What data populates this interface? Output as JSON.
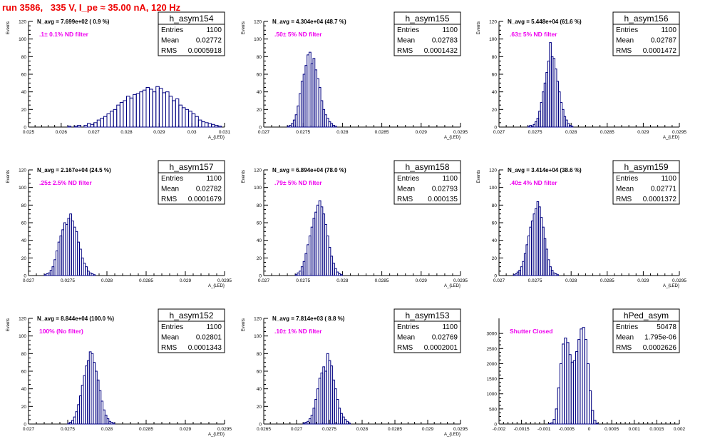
{
  "page": {
    "title": "run 3586,   335 V, I_pe ≈ 35.00 nA, 120 Hz"
  },
  "colors": {
    "title": "#ee0000",
    "annotation": "#ee00ee",
    "histogram": "#000080",
    "axis": "#000000"
  },
  "chart_data": [
    {
      "type": "bar",
      "name": "h_asym154",
      "stats": {
        "entries_label": "Entries",
        "entries": "1100",
        "mean_label": "Mean",
        "mean": "0.02772",
        "rms_label": "RMS",
        "rms": "0.0005918"
      },
      "navg": "N_avg = 7.699e+02 ( 0.9 %)",
      "filter": ".1± 0.1% ND filter",
      "xlabel": "A_{LED}",
      "ylabel": "Events",
      "xlim": [
        0.025,
        0.031
      ],
      "ylim": [
        0,
        120
      ],
      "xticks": [
        "0.025",
        "0.026",
        "0.027",
        "0.028",
        "0.029",
        "0.03",
        "0.031"
      ],
      "xtick_values": [
        0.025,
        0.026,
        0.027,
        0.028,
        0.029,
        0.03,
        0.031
      ],
      "yticks": [
        "0",
        "20",
        "40",
        "60",
        "80",
        "100",
        "120"
      ],
      "ytick_values": [
        0,
        20,
        40,
        60,
        80,
        100,
        120
      ],
      "bin_start": 0.0262,
      "bin_width": 0.0001,
      "values": [
        1,
        0,
        1,
        2,
        0,
        2,
        4,
        3,
        5,
        8,
        10,
        12,
        15,
        18,
        20,
        25,
        28,
        30,
        35,
        33,
        37,
        38,
        40,
        42,
        45,
        43,
        40,
        46,
        44,
        39,
        40,
        35,
        30,
        32,
        25,
        22,
        20,
        18,
        15,
        12,
        8,
        6,
        5,
        4,
        3,
        2,
        1
      ]
    },
    {
      "type": "bar",
      "name": "h_asym155",
      "stats": {
        "entries_label": "Entries",
        "entries": "1100",
        "mean_label": "Mean",
        "mean": "0.02783",
        "rms_label": "RMS",
        "rms": "0.0001432"
      },
      "navg": "N_avg = 4.304e+04 (48.7 %)",
      "filter": ".50± 5% ND filter",
      "xlabel": "A_{LED}",
      "ylabel": "Events",
      "xlim": [
        0.027,
        0.0295
      ],
      "ylim": [
        0,
        120
      ],
      "xticks": [
        "0.027",
        "0.0275",
        "0.028",
        "0.0285",
        "0.029",
        "0.0295"
      ],
      "xtick_values": [
        0.027,
        0.0275,
        0.028,
        0.0285,
        0.029,
        0.0295
      ],
      "yticks": [
        "0",
        "20",
        "40",
        "60",
        "80",
        "100",
        "120"
      ],
      "ytick_values": [
        0,
        20,
        40,
        60,
        80,
        100,
        120
      ],
      "bin_start": 0.0273,
      "bin_width": 2.5e-05,
      "values": [
        1,
        2,
        4,
        8,
        14,
        24,
        38,
        52,
        60,
        70,
        82,
        85,
        72,
        78,
        65,
        55,
        45,
        30,
        20,
        14,
        10,
        6,
        4,
        2,
        1
      ]
    },
    {
      "type": "bar",
      "name": "h_asym156",
      "stats": {
        "entries_label": "Entries",
        "entries": "1100",
        "mean_label": "Mean",
        "mean": "0.02787",
        "rms_label": "RMS",
        "rms": "0.0001472"
      },
      "navg": "N_avg = 5.448e+04 (61.6 %)",
      "filter": ".63± 5% ND filter",
      "xlabel": "A_{LED}",
      "ylabel": "Events",
      "xlim": [
        0.027,
        0.0295
      ],
      "ylim": [
        0,
        120
      ],
      "xticks": [
        "0.027",
        "0.0275",
        "0.028",
        "0.0285",
        "0.029",
        "0.0295"
      ],
      "xtick_values": [
        0.027,
        0.0275,
        0.028,
        0.0285,
        0.029,
        0.0295
      ],
      "yticks": [
        "0",
        "20",
        "40",
        "60",
        "80",
        "100",
        "120"
      ],
      "ytick_values": [
        0,
        20,
        40,
        60,
        80,
        100,
        120
      ],
      "bin_start": 0.0274,
      "bin_width": 2.5e-05,
      "values": [
        1,
        2,
        1,
        3,
        6,
        10,
        18,
        28,
        40,
        50,
        62,
        75,
        96,
        80,
        78,
        66,
        52,
        40,
        28,
        20,
        12,
        8,
        4,
        2,
        1
      ]
    },
    {
      "type": "bar",
      "name": "h_asym157",
      "stats": {
        "entries_label": "Entries",
        "entries": "1100",
        "mean_label": "Mean",
        "mean": "0.02782",
        "rms_label": "RMS",
        "rms": "0.0001679"
      },
      "navg": "N_avg = 2.167e+04 (24.5 %)",
      "filter": ".25± 2.5% ND filter",
      "xlabel": "A_{LED}",
      "ylabel": "Events",
      "xlim": [
        0.027,
        0.0295
      ],
      "ylim": [
        0,
        120
      ],
      "xticks": [
        "0.027",
        "0.0275",
        "0.028",
        "0.0285",
        "0.029",
        "0.0295"
      ],
      "xtick_values": [
        0.027,
        0.0275,
        0.028,
        0.0285,
        0.029,
        0.0295
      ],
      "yticks": [
        "0",
        "20",
        "40",
        "60",
        "80",
        "100",
        "120"
      ],
      "ytick_values": [
        0,
        20,
        40,
        60,
        80,
        100,
        120
      ],
      "bin_start": 0.0272,
      "bin_width": 2.5e-05,
      "values": [
        1,
        2,
        3,
        6,
        10,
        18,
        28,
        38,
        45,
        52,
        60,
        58,
        65,
        70,
        62,
        55,
        50,
        38,
        30,
        20,
        14,
        10,
        5,
        3,
        2,
        1
      ]
    },
    {
      "type": "bar",
      "name": "h_asym158",
      "stats": {
        "entries_label": "Entries",
        "entries": "1100",
        "mean_label": "Mean",
        "mean": "0.02793",
        "rms_label": "RMS",
        "rms": "0.000135"
      },
      "navg": "N_avg = 6.894e+04 (78.0 %)",
      "filter": ".79± 5% ND filter",
      "xlabel": "A_{LED}",
      "ylabel": "Events",
      "xlim": [
        0.027,
        0.0295
      ],
      "ylim": [
        0,
        120
      ],
      "xticks": [
        "0.027",
        "0.0275",
        "0.028",
        "0.0285",
        "0.029",
        "0.0295"
      ],
      "xtick_values": [
        0.027,
        0.0275,
        0.028,
        0.0285,
        0.029,
        0.0295
      ],
      "yticks": [
        "0",
        "20",
        "40",
        "60",
        "80",
        "100",
        "120"
      ],
      "ytick_values": [
        0,
        20,
        40,
        60,
        80,
        100,
        120
      ],
      "bin_start": 0.0274,
      "bin_width": 2.5e-05,
      "values": [
        1,
        3,
        5,
        10,
        16,
        25,
        35,
        45,
        55,
        65,
        72,
        80,
        85,
        78,
        70,
        58,
        45,
        32,
        22,
        14,
        8,
        4,
        2,
        1
      ]
    },
    {
      "type": "bar",
      "name": "h_asym159",
      "stats": {
        "entries_label": "Entries",
        "entries": "1100",
        "mean_label": "Mean",
        "mean": "0.02771",
        "rms_label": "RMS",
        "rms": "0.0001372"
      },
      "navg": "N_avg = 3.414e+04 (38.6 %)",
      "filter": ".40± 4% ND filter",
      "xlabel": "A_{LED}",
      "ylabel": "Events",
      "xlim": [
        0.027,
        0.0295
      ],
      "ylim": [
        0,
        120
      ],
      "xticks": [
        "0.027",
        "0.0275",
        "0.028",
        "0.0285",
        "0.029",
        "0.0295"
      ],
      "xtick_values": [
        0.027,
        0.0275,
        0.028,
        0.0285,
        0.029,
        0.0295
      ],
      "yticks": [
        "0",
        "20",
        "40",
        "60",
        "80",
        "100",
        "120"
      ],
      "ytick_values": [
        0,
        20,
        40,
        60,
        80,
        100,
        120
      ],
      "bin_start": 0.0272,
      "bin_width": 2.5e-05,
      "values": [
        1,
        2,
        4,
        6,
        10,
        16,
        25,
        35,
        45,
        55,
        62,
        70,
        76,
        84,
        78,
        66,
        55,
        42,
        30,
        18,
        10,
        6,
        3,
        2,
        1
      ]
    },
    {
      "type": "bar",
      "name": "h_asym152",
      "stats": {
        "entries_label": "Entries",
        "entries": "1100",
        "mean_label": "Mean",
        "mean": "0.02801",
        "rms_label": "RMS",
        "rms": "0.0001343"
      },
      "navg": "N_avg = 8.844e+04 (100.0 %)",
      "filter": "100% (No filter)",
      "xlabel": "A_{LED}",
      "ylabel": "Events",
      "xlim": [
        0.027,
        0.0295
      ],
      "ylim": [
        0,
        120
      ],
      "xticks": [
        "0.027",
        "0.0275",
        "0.028",
        "0.0285",
        "0.029",
        "0.0295"
      ],
      "xtick_values": [
        0.027,
        0.0275,
        0.028,
        0.0285,
        0.029,
        0.0295
      ],
      "yticks": [
        "0",
        "20",
        "40",
        "60",
        "80",
        "100",
        "120"
      ],
      "ytick_values": [
        0,
        20,
        40,
        60,
        80,
        100,
        120
      ],
      "bin_start": 0.0275,
      "bin_width": 2.5e-05,
      "values": [
        1,
        2,
        4,
        8,
        14,
        22,
        32,
        44,
        55,
        66,
        72,
        82,
        80,
        70,
        60,
        50,
        38,
        26,
        16,
        10,
        6,
        3,
        2,
        1
      ]
    },
    {
      "type": "bar",
      "name": "h_asym153",
      "stats": {
        "entries_label": "Entries",
        "entries": "1100",
        "mean_label": "Mean",
        "mean": "0.02769",
        "rms_label": "RMS",
        "rms": "0.0002001"
      },
      "navg": "N_avg = 7.814e+03 ( 8.8 %)",
      "filter": ".10± 1% ND filter",
      "xlabel": "A_{LED}",
      "ylabel": "Events",
      "xlim": [
        0.0265,
        0.0295
      ],
      "ylim": [
        0,
        120
      ],
      "xticks": [
        "0.0265",
        "0.027",
        "0.0275",
        "0.028",
        "0.0285",
        "0.029",
        "0.0295"
      ],
      "xtick_values": [
        0.0265,
        0.027,
        0.0275,
        0.028,
        0.0285,
        0.029,
        0.0295
      ],
      "yticks": [
        "0",
        "20",
        "40",
        "60",
        "80",
        "100",
        "120"
      ],
      "ytick_values": [
        0,
        20,
        40,
        60,
        80,
        100,
        120
      ],
      "bin_start": 0.0271,
      "bin_width": 3e-05,
      "values": [
        1,
        2,
        3,
        6,
        10,
        18,
        28,
        40,
        52,
        58,
        65,
        60,
        80,
        72,
        66,
        50,
        40,
        28,
        18,
        12,
        8,
        5,
        3,
        1
      ]
    },
    {
      "type": "bar",
      "name": "hPed_asym",
      "stats": {
        "entries_label": "Entries",
        "entries": "50478",
        "mean_label": "Mean",
        "mean": "1.795e-06",
        "rms_label": "RMS",
        "rms": "0.0002626"
      },
      "navg": "",
      "filter": "Shutter Closed",
      "xlabel": "",
      "ylabel": "",
      "xlim": [
        -0.002,
        0.002
      ],
      "ylim": [
        0,
        3500
      ],
      "xticks": [
        "-0.002",
        "-0.0015",
        "-0.001",
        "-0.0005",
        "0",
        "0.0005",
        "0.001",
        "0.0015",
        "0.002"
      ],
      "xtick_values": [
        -0.002,
        -0.0015,
        -0.001,
        -0.0005,
        0,
        0.0005,
        0.001,
        0.0015,
        0.002
      ],
      "yticks": [
        "0",
        "500",
        "1000",
        "1500",
        "2000",
        "2500",
        "3000"
      ],
      "ytick_values": [
        0,
        500,
        1000,
        1500,
        2000,
        2500,
        3000
      ],
      "bin_start": -0.0009,
      "bin_width": 5e-05,
      "values": [
        10,
        40,
        150,
        500,
        1200,
        2000,
        2650,
        2850,
        2700,
        2300,
        2050,
        2100,
        2400,
        2800,
        3150,
        3200,
        2800,
        2000,
        1100,
        450,
        120,
        20
      ]
    }
  ]
}
